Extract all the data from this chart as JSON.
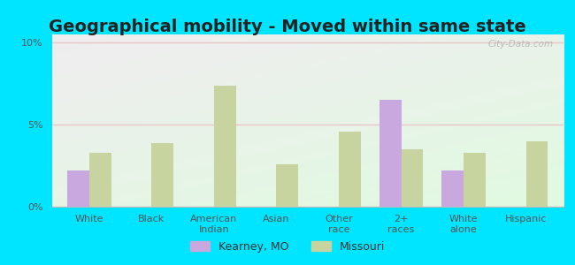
{
  "title": "Geographical mobility - Moved within same state",
  "categories": [
    "White",
    "Black",
    "American\nIndian",
    "Asian",
    "Other\nrace",
    "2+\nraces",
    "White\nalone",
    "Hispanic"
  ],
  "kearney_values": [
    2.2,
    0,
    0,
    0,
    0,
    6.5,
    2.2,
    0
  ],
  "missouri_values": [
    3.3,
    3.9,
    7.4,
    2.6,
    4.6,
    3.5,
    3.3,
    4.0
  ],
  "kearney_color": "#c9a8e0",
  "missouri_color": "#c8d4a0",
  "bar_width": 0.35,
  "ylim": [
    0,
    10.5
  ],
  "yticks": [
    0,
    5,
    10
  ],
  "ytick_labels": [
    "0%",
    "5%",
    "10%"
  ],
  "outer_bg": "#00e5ff",
  "title_fontsize": 14,
  "tick_fontsize": 8,
  "legend_fontsize": 9,
  "watermark": "City-Data.com",
  "grid_color": "#e8c8c8",
  "title_color": "#222222"
}
